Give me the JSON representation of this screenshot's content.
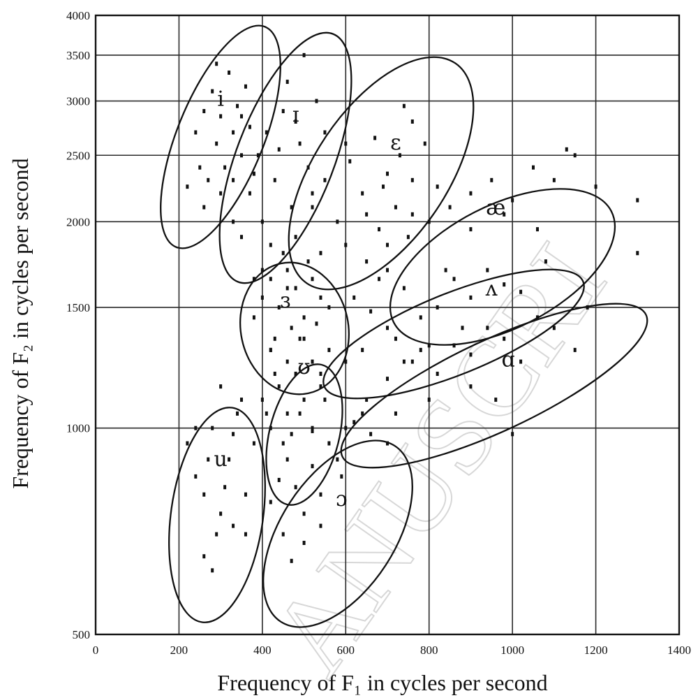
{
  "chart_data": {
    "type": "scatter",
    "xlabel": "Frequency of F₁ in cycles per second",
    "ylabel": "Frequency of F₂ in cycles per second",
    "xlim": [
      0,
      1400
    ],
    "ylim": [
      500,
      4000
    ],
    "yscale": "log",
    "grid": true,
    "x_ticks": [
      "0",
      "200",
      "400",
      "600",
      "800",
      "1000",
      "1200",
      "1400"
    ],
    "y_ticks": [
      "4000",
      "3500",
      "3000",
      "2500",
      "2000",
      "1500",
      "1000",
      "500"
    ],
    "watermark": "ANUSCRI",
    "vowels": [
      {
        "symbol": "i",
        "label_x": 300,
        "label_y": 2950,
        "points": [
          [
            220,
            2250
          ],
          [
            240,
            2700
          ],
          [
            250,
            2400
          ],
          [
            260,
            2900
          ],
          [
            270,
            2300
          ],
          [
            280,
            3100
          ],
          [
            290,
            2600
          ],
          [
            300,
            2850
          ],
          [
            310,
            2400
          ],
          [
            320,
            3300
          ],
          [
            330,
            2700
          ],
          [
            340,
            2950
          ],
          [
            350,
            2500
          ],
          [
            360,
            3150
          ],
          [
            370,
            2750
          ],
          [
            300,
            2200
          ],
          [
            260,
            2100
          ],
          [
            330,
            2300
          ],
          [
            290,
            3400
          ],
          [
            350,
            2850
          ]
        ]
      },
      {
        "symbol": "ɪ",
        "label_x": 480,
        "label_y": 2800,
        "points": [
          [
            330,
            2000
          ],
          [
            350,
            1900
          ],
          [
            370,
            2200
          ],
          [
            390,
            2500
          ],
          [
            410,
            2700
          ],
          [
            430,
            2300
          ],
          [
            450,
            2900
          ],
          [
            470,
            2100
          ],
          [
            490,
            2600
          ],
          [
            510,
            2400
          ],
          [
            530,
            3000
          ],
          [
            550,
            2700
          ],
          [
            400,
            2000
          ],
          [
            440,
            2550
          ],
          [
            480,
            2800
          ],
          [
            520,
            2200
          ],
          [
            460,
            3200
          ],
          [
            500,
            3500
          ],
          [
            420,
            1850
          ],
          [
            380,
            2350
          ]
        ]
      },
      {
        "symbol": "ɛ",
        "label_x": 720,
        "label_y": 2550,
        "points": [
          [
            480,
            1900
          ],
          [
            520,
            2100
          ],
          [
            550,
            2300
          ],
          [
            580,
            2000
          ],
          [
            610,
            2450
          ],
          [
            640,
            2200
          ],
          [
            670,
            2650
          ],
          [
            700,
            2350
          ],
          [
            730,
            2500
          ],
          [
            760,
            2800
          ],
          [
            790,
            2600
          ],
          [
            600,
            1850
          ],
          [
            650,
            2050
          ],
          [
            690,
            2250
          ],
          [
            720,
            2100
          ],
          [
            760,
            2300
          ],
          [
            540,
            1800
          ],
          [
            600,
            2600
          ],
          [
            740,
            2950
          ],
          [
            680,
            1950
          ]
        ]
      },
      {
        "symbol": "æ",
        "label_x": 960,
        "label_y": 2050,
        "points": [
          [
            650,
            1750
          ],
          [
            700,
            1850
          ],
          [
            750,
            1900
          ],
          [
            800,
            2000
          ],
          [
            850,
            2100
          ],
          [
            900,
            2200
          ],
          [
            950,
            2300
          ],
          [
            1000,
            2150
          ],
          [
            1050,
            2400
          ],
          [
            1100,
            2300
          ],
          [
            1150,
            2500
          ],
          [
            1200,
            2250
          ],
          [
            900,
            1950
          ],
          [
            980,
            2050
          ],
          [
            1060,
            1950
          ],
          [
            820,
            2250
          ],
          [
            760,
            2050
          ],
          [
            1300,
            2150
          ],
          [
            700,
            1700
          ],
          [
            1130,
            2550
          ]
        ]
      },
      {
        "symbol": "ʌ",
        "label_x": 950,
        "label_y": 1560,
        "points": [
          [
            620,
            1550
          ],
          [
            660,
            1480
          ],
          [
            700,
            1400
          ],
          [
            740,
            1600
          ],
          [
            780,
            1450
          ],
          [
            820,
            1500
          ],
          [
            860,
            1650
          ],
          [
            900,
            1550
          ],
          [
            940,
            1700
          ],
          [
            980,
            1620
          ],
          [
            1020,
            1580
          ],
          [
            1080,
            1750
          ],
          [
            640,
            1300
          ],
          [
            720,
            1350
          ],
          [
            800,
            1320
          ],
          [
            880,
            1400
          ],
          [
            760,
            1250
          ],
          [
            680,
            1650
          ],
          [
            600,
            1250
          ],
          [
            840,
            1700
          ]
        ]
      },
      {
        "symbol": "ɑ",
        "label_x": 990,
        "label_y": 1230,
        "points": [
          [
            650,
            1100
          ],
          [
            700,
            1180
          ],
          [
            740,
            1250
          ],
          [
            780,
            1300
          ],
          [
            820,
            1200
          ],
          [
            860,
            1320
          ],
          [
            900,
            1280
          ],
          [
            940,
            1400
          ],
          [
            980,
            1350
          ],
          [
            1020,
            1250
          ],
          [
            1060,
            1450
          ],
          [
            1100,
            1400
          ],
          [
            1150,
            1300
          ],
          [
            900,
            1150
          ],
          [
            960,
            1100
          ],
          [
            1000,
            980
          ],
          [
            1300,
            1800
          ],
          [
            800,
            1100
          ],
          [
            720,
            1050
          ],
          [
            1180,
            1500
          ]
        ]
      },
      {
        "symbol": "ɜ",
        "label_x": 455,
        "label_y": 1500,
        "points": [
          [
            380,
            1450
          ],
          [
            400,
            1550
          ],
          [
            420,
            1650
          ],
          [
            440,
            1500
          ],
          [
            460,
            1700
          ],
          [
            480,
            1600
          ],
          [
            500,
            1450
          ],
          [
            520,
            1650
          ],
          [
            540,
            1550
          ],
          [
            430,
            1350
          ],
          [
            470,
            1400
          ],
          [
            510,
            1750
          ],
          [
            450,
            1800
          ],
          [
            400,
            1700
          ],
          [
            560,
            1500
          ],
          [
            490,
            1350
          ],
          [
            420,
            1300
          ],
          [
            530,
            1420
          ],
          [
            460,
            1600
          ],
          [
            380,
            1650
          ]
        ]
      },
      {
        "symbol": "ʊ",
        "label_x": 500,
        "label_y": 1200,
        "points": [
          [
            400,
            1100
          ],
          [
            420,
            1000
          ],
          [
            440,
            1150
          ],
          [
            460,
            1050
          ],
          [
            480,
            1200
          ],
          [
            500,
            1100
          ],
          [
            520,
            1250
          ],
          [
            540,
            1150
          ],
          [
            560,
            1300
          ],
          [
            420,
            1300
          ],
          [
            450,
            950
          ],
          [
            500,
            1350
          ],
          [
            430,
            1200
          ],
          [
            470,
            980
          ],
          [
            410,
            1050
          ],
          [
            540,
            1200
          ],
          [
            490,
            1050
          ],
          [
            460,
            1250
          ],
          [
            520,
            1000
          ],
          [
            550,
            1100
          ]
        ]
      },
      {
        "symbol": "u",
        "label_x": 300,
        "label_y": 880,
        "points": [
          [
            220,
            950
          ],
          [
            240,
            850
          ],
          [
            260,
            800
          ],
          [
            280,
            1000
          ],
          [
            300,
            750
          ],
          [
            320,
            900
          ],
          [
            340,
            1050
          ],
          [
            360,
            800
          ],
          [
            380,
            950
          ],
          [
            260,
            650
          ],
          [
            290,
            700
          ],
          [
            330,
            720
          ],
          [
            350,
            1100
          ],
          [
            300,
            1150
          ],
          [
            270,
            900
          ],
          [
            310,
            820
          ],
          [
            360,
            700
          ],
          [
            240,
            1000
          ],
          [
            330,
            980
          ],
          [
            280,
            620
          ]
        ]
      },
      {
        "symbol": "ɔ",
        "label_x": 590,
        "label_y": 770,
        "points": [
          [
            420,
            780
          ],
          [
            450,
            700
          ],
          [
            480,
            820
          ],
          [
            500,
            750
          ],
          [
            520,
            880
          ],
          [
            540,
            800
          ],
          [
            560,
            950
          ],
          [
            580,
            900
          ],
          [
            600,
            1000
          ],
          [
            620,
            1020
          ],
          [
            660,
            980
          ],
          [
            700,
            950
          ],
          [
            470,
            640
          ],
          [
            500,
            680
          ],
          [
            540,
            720
          ],
          [
            460,
            900
          ],
          [
            520,
            990
          ],
          [
            640,
            1050
          ],
          [
            590,
            850
          ],
          [
            440,
            840
          ]
        ]
      }
    ]
  }
}
